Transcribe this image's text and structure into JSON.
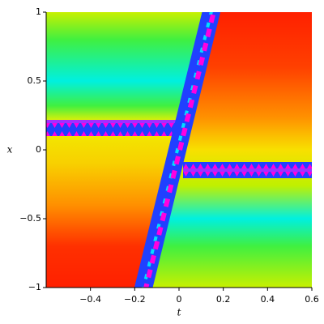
{
  "chart_data": {
    "type": "density",
    "x_label": "t",
    "y_label": "x",
    "xlim": [
      -0.6,
      0.6
    ],
    "ylim": [
      -1,
      1
    ],
    "xticks": [
      {
        "value": -0.4,
        "label": "−0.4"
      },
      {
        "value": -0.2,
        "label": "−0.2"
      },
      0,
      0.2,
      0.4,
      0.6
    ],
    "yticks": [
      {
        "value": -1,
        "label": "−1"
      },
      {
        "value": -0.5,
        "label": "−0.5"
      },
      0,
      0.5,
      1
    ]
  }
}
